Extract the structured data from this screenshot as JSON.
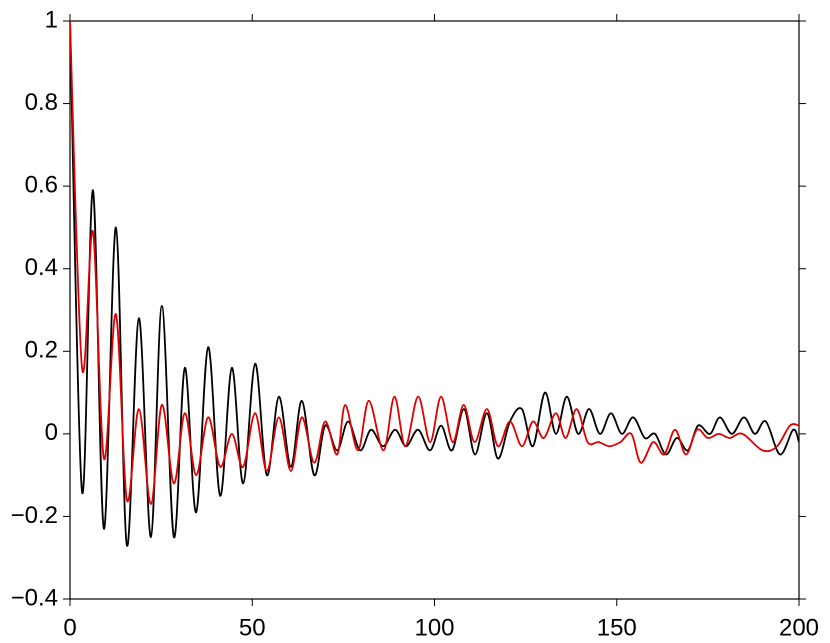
{
  "chart_data": {
    "type": "line",
    "xlim": [
      0,
      200
    ],
    "ylim": [
      -0.4,
      1
    ],
    "xticks": [
      0,
      50,
      100,
      150,
      200
    ],
    "yticks": [
      {
        "value": -0.4,
        "label": "−0.4"
      },
      {
        "value": -0.2,
        "label": "−0.2"
      },
      0,
      0.2,
      0.4,
      0.6,
      0.8,
      1
    ],
    "grid": false,
    "series": [
      {
        "color": "#000000",
        "x": [
          0,
          3.3,
          6.3,
          9.3,
          12.6,
          15.6,
          18.9,
          22.2,
          25.2,
          28.5,
          31.5,
          34.6,
          37.9,
          41.2,
          44.4,
          47.5,
          50.8,
          54,
          57.3,
          60.6,
          63.6,
          67,
          70,
          73.3,
          76.3,
          79.6,
          82.6,
          85.9,
          89.2,
          92.2,
          95.5,
          98.8,
          101.8,
          104.8,
          108.1,
          111.1,
          114.4,
          117.4,
          120.7,
          124,
          127,
          130.3,
          133.3,
          136.3,
          139.4,
          142.4,
          145.4,
          148.4,
          151.4,
          154.5,
          157.7,
          160.5,
          163.5,
          166.5,
          169.5,
          172.3,
          175.6,
          178.3,
          181.6,
          184.9,
          187.9,
          190.9,
          194.8,
          198.4,
          200
        ],
        "values": [
          1,
          -0.14,
          0.59,
          -0.23,
          0.5,
          -0.27,
          0.28,
          -0.25,
          0.31,
          -0.25,
          0.16,
          -0.19,
          0.21,
          -0.15,
          0.16,
          -0.12,
          0.17,
          -0.1,
          0.09,
          -0.08,
          0.08,
          -0.1,
          0.02,
          -0.04,
          0.03,
          -0.04,
          0.01,
          -0.03,
          0.01,
          -0.03,
          0.01,
          -0.04,
          0.02,
          -0.04,
          0.06,
          -0.05,
          0.05,
          -0.06,
          0.03,
          0.06,
          -0.03,
          0.1,
          0,
          0.09,
          0,
          0.06,
          0,
          0.05,
          0,
          0.04,
          -0.01,
          0,
          -0.05,
          -0.01,
          -0.04,
          0.02,
          0,
          0.04,
          0,
          0.04,
          0,
          0.03,
          -0.05,
          0.01,
          -0.02
        ]
      },
      {
        "color": "#e00000",
        "x": [
          0,
          3.3,
          6.3,
          9.3,
          12.6,
          15.6,
          18.9,
          22.2,
          25.2,
          28.5,
          31.5,
          34.6,
          37.9,
          41.2,
          44.4,
          47.5,
          50.8,
          54,
          57.3,
          60.6,
          63.6,
          67,
          70,
          73.3,
          75.5,
          79,
          82,
          86,
          89,
          92,
          95.5,
          98.8,
          101.8,
          105,
          108,
          111,
          114.4,
          117.4,
          120.7,
          124,
          127,
          130,
          133.3,
          136,
          139,
          142,
          145,
          148,
          151,
          154,
          156.6,
          160,
          163,
          166,
          169,
          172,
          175,
          178,
          181,
          184.5,
          190,
          194,
          197.5,
          200
        ],
        "values": [
          1,
          0.16,
          0.49,
          -0.06,
          0.29,
          -0.16,
          0.06,
          -0.17,
          0.07,
          -0.12,
          0.05,
          -0.1,
          0.04,
          -0.08,
          0,
          -0.08,
          0.05,
          -0.09,
          0.04,
          -0.09,
          0.04,
          -0.07,
          0.03,
          -0.05,
          0.07,
          -0.04,
          0.08,
          -0.04,
          0.09,
          -0.03,
          0.09,
          -0.02,
          0.09,
          -0.02,
          0.07,
          -0.02,
          0.06,
          -0.03,
          0.03,
          -0.03,
          0.03,
          -0.01,
          0.05,
          -0.01,
          0.06,
          -0.02,
          -0.02,
          -0.03,
          -0.02,
          0,
          -0.07,
          -0.02,
          -0.05,
          0.01,
          -0.05,
          0.01,
          -0.01,
          0,
          -0.01,
          0,
          -0.04,
          -0.03,
          0.02,
          0.02
        ]
      }
    ]
  }
}
